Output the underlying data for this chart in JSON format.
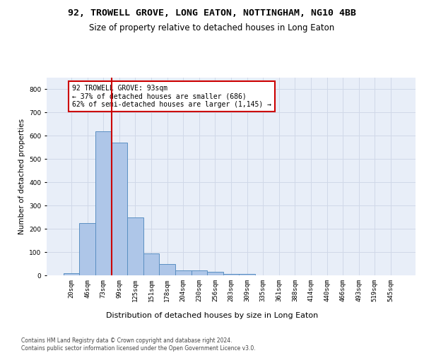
{
  "title": "92, TROWELL GROVE, LONG EATON, NOTTINGHAM, NG10 4BB",
  "subtitle": "Size of property relative to detached houses in Long Eaton",
  "xlabel": "Distribution of detached houses by size in Long Eaton",
  "ylabel": "Number of detached properties",
  "bar_values": [
    10,
    225,
    620,
    570,
    250,
    95,
    50,
    22,
    22,
    14,
    5,
    5,
    0,
    0,
    0,
    0,
    0,
    0,
    0,
    0,
    0
  ],
  "bin_labels": [
    "20sqm",
    "46sqm",
    "73sqm",
    "99sqm",
    "125sqm",
    "151sqm",
    "178sqm",
    "204sqm",
    "230sqm",
    "256sqm",
    "283sqm",
    "309sqm",
    "335sqm",
    "361sqm",
    "388sqm",
    "414sqm",
    "440sqm",
    "466sqm",
    "493sqm",
    "519sqm",
    "545sqm"
  ],
  "bar_color": "#aec6e8",
  "bar_edge_color": "#5a8fc2",
  "vline_color": "#cc0000",
  "annotation_text": "92 TROWELL GROVE: 93sqm\n← 37% of detached houses are smaller (686)\n62% of semi-detached houses are larger (1,145) →",
  "annotation_box_color": "#ffffff",
  "annotation_box_edge": "#cc0000",
  "ylim": [
    0,
    850
  ],
  "yticks": [
    0,
    100,
    200,
    300,
    400,
    500,
    600,
    700,
    800
  ],
  "grid_color": "#d0d8e8",
  "background_color": "#e8eef8",
  "footnote": "Contains HM Land Registry data © Crown copyright and database right 2024.\nContains public sector information licensed under the Open Government Licence v3.0.",
  "fig_width": 6.0,
  "fig_height": 5.0,
  "title_fontsize": 9.5,
  "subtitle_fontsize": 8.5,
  "xlabel_fontsize": 8,
  "ylabel_fontsize": 7.5,
  "tick_fontsize": 6.5,
  "annotation_fontsize": 7,
  "footnote_fontsize": 5.5
}
